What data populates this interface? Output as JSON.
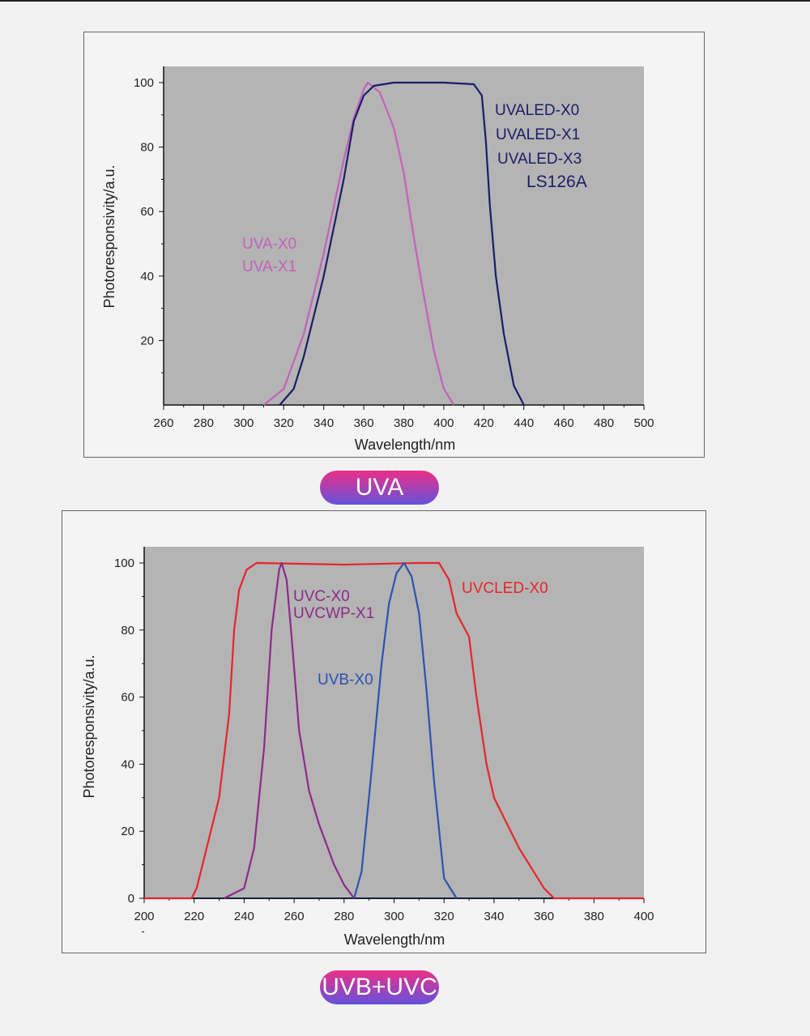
{
  "chart_data": [
    {
      "type": "line",
      "title": "UVA",
      "xlabel": "Wavelength/nm",
      "ylabel": "Photoresponsivity/a.u.",
      "xlim": [
        260,
        500
      ],
      "ylim": [
        0,
        105
      ],
      "xticks": [
        260,
        280,
        300,
        320,
        340,
        360,
        380,
        400,
        420,
        440,
        460,
        480,
        500
      ],
      "yticks": [
        20,
        40,
        60,
        80,
        100
      ],
      "series": [
        {
          "name": "UVA-X0 / UVA-X1",
          "color": "#c262b9",
          "labels": [
            "UVA-X0",
            "UVA-X1"
          ],
          "x": [
            310,
            320,
            330,
            340,
            350,
            355,
            360,
            362,
            368,
            375,
            380,
            385,
            390,
            395,
            400,
            405
          ],
          "y": [
            0,
            5,
            22,
            47,
            76,
            89,
            98,
            100,
            97,
            86,
            72,
            52,
            34,
            17,
            5,
            0
          ]
        },
        {
          "name": "UVALED",
          "color": "#1c1c6a",
          "labels": [
            "UVALED-X0",
            "UVALED-X1",
            "UVALED-X3",
            "LS126A"
          ],
          "x": [
            318,
            325,
            330,
            340,
            350,
            355,
            360,
            365,
            375,
            400,
            415,
            419,
            421,
            423,
            426,
            430,
            435,
            440
          ],
          "y": [
            0,
            5,
            15,
            40,
            70,
            88,
            96,
            99,
            100,
            100,
            99.5,
            96,
            82,
            62,
            40,
            22,
            6,
            0
          ]
        }
      ]
    },
    {
      "type": "line",
      "title": "UVB+UVC",
      "xlabel": "Wavelength/nm",
      "ylabel": "Photoresponsivity/a.u.",
      "xlim": [
        200,
        400
      ],
      "ylim": [
        0,
        105
      ],
      "xticks": [
        200,
        220,
        240,
        260,
        280,
        300,
        320,
        340,
        360,
        380,
        400
      ],
      "yticks": [
        0,
        20,
        40,
        60,
        80,
        100
      ],
      "series": [
        {
          "name": "UVCLED-X0",
          "color": "#e8242a",
          "labels": [
            "UVCLED-X0"
          ],
          "x": [
            200,
            219,
            221,
            225,
            230,
            234,
            236,
            238,
            241,
            245,
            280,
            310,
            318,
            322,
            325,
            330,
            333,
            337,
            340,
            350,
            360,
            364,
            400
          ],
          "y": [
            0,
            0,
            3,
            15,
            30,
            55,
            80,
            92,
            98,
            100,
            99.5,
            100,
            100,
            95,
            85,
            78,
            60,
            40,
            30,
            15,
            3,
            0,
            0
          ]
        },
        {
          "name": "UVC-X0 / UVCWP-X1",
          "color": "#8c2a8a",
          "labels": [
            "UVC-X0",
            "UVCWP-X1"
          ],
          "x": [
            232,
            240,
            244,
            248,
            251,
            254,
            255,
            257,
            259,
            262,
            266,
            270,
            276,
            280,
            284
          ],
          "y": [
            0,
            3,
            15,
            45,
            80,
            98,
            100,
            95,
            78,
            50,
            32,
            22,
            10,
            4,
            0
          ]
        },
        {
          "name": "UVB-X0",
          "color": "#2c52b2",
          "labels": [
            "UVB-X0"
          ],
          "x": [
            284,
            287,
            291,
            295,
            298,
            301,
            304,
            307,
            310,
            313,
            316,
            320,
            325
          ],
          "y": [
            0,
            8,
            38,
            70,
            88,
            97,
            100,
            96,
            85,
            62,
            35,
            6,
            0
          ]
        }
      ]
    }
  ]
}
